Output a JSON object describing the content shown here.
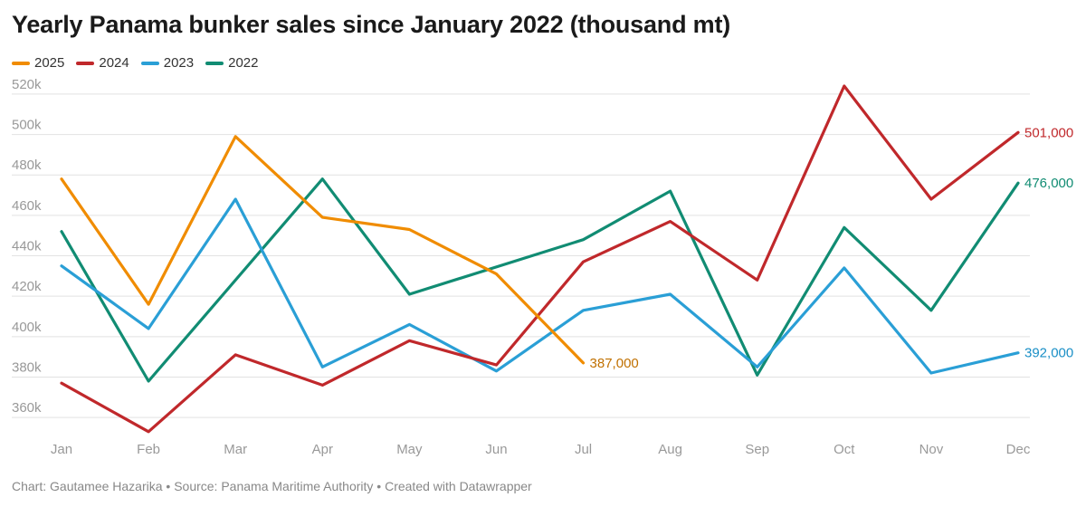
{
  "title": "Yearly Panama bunker sales since January 2022 (thousand mt)",
  "footer": "Chart: Gautamee Hazarika • Source: Panama Maritime Authority • Created with Datawrapper",
  "chart_data": {
    "type": "line",
    "categories": [
      "Jan",
      "Feb",
      "Mar",
      "Apr",
      "May",
      "Jun",
      "Jul",
      "Aug",
      "Sep",
      "Oct",
      "Nov",
      "Dec"
    ],
    "y_ticks": [
      360000,
      380000,
      400000,
      420000,
      440000,
      460000,
      480000,
      500000,
      520000
    ],
    "y_tick_labels": [
      "360k",
      "380k",
      "400k",
      "420k",
      "440k",
      "460k",
      "480k",
      "500k",
      "520k"
    ],
    "ylim": [
      352000,
      524000
    ],
    "grid": true,
    "legend_position": "top-left",
    "series": [
      {
        "name": "2025",
        "color": "#f08c00",
        "values": [
          478000,
          416000,
          499000,
          459000,
          453000,
          431000,
          387000,
          null,
          null,
          null,
          null,
          null
        ],
        "end_label": "387,000",
        "end_label_color": "#c07000"
      },
      {
        "name": "2024",
        "color": "#c0282b",
        "values": [
          377000,
          353000,
          391000,
          376000,
          398000,
          386000,
          437000,
          457000,
          428000,
          524000,
          468000,
          501000
        ],
        "end_label": "501,000",
        "end_label_color": "#c0282b"
      },
      {
        "name": "2023",
        "color": "#2a9fd6",
        "values": [
          435000,
          404000,
          468000,
          385000,
          406000,
          383000,
          413000,
          421000,
          385000,
          434000,
          382000,
          392000
        ],
        "end_label": "392,000",
        "end_label_color": "#1a8fc6"
      },
      {
        "name": "2022",
        "color": "#118c73",
        "values": [
          452000,
          378000,
          null,
          478000,
          421000,
          null,
          448000,
          472000,
          381000,
          454000,
          413000,
          476000
        ],
        "end_label": "476,000",
        "end_label_color": "#118c73"
      }
    ]
  }
}
